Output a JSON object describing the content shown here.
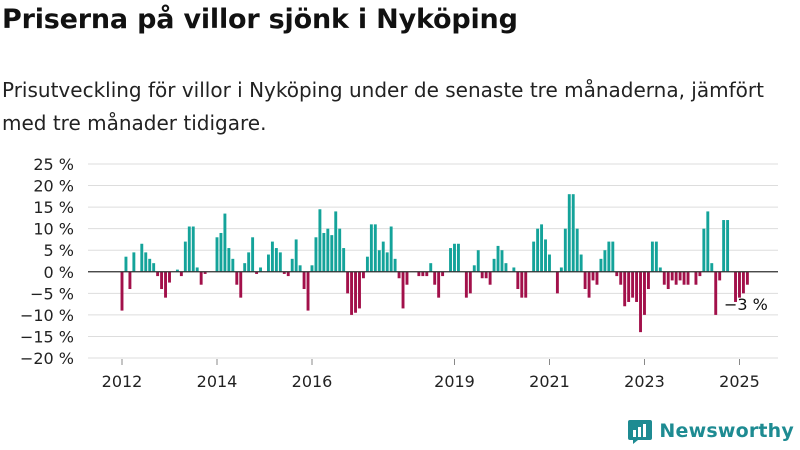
{
  "title": "Priserna på villor sjönk i Nyköping",
  "subtitle": "Prisutveckling för villor i Nyköping under de senaste tre månaderna, jämfört med tre månader tidigare.",
  "brand": "Newsworthy",
  "colors": {
    "positive": "#14a39a",
    "negative": "#a2104a",
    "grid": "#dddddd",
    "text": "#222222"
  },
  "annotation": {
    "text": "−3 %"
  },
  "chart_data": {
    "type": "bar",
    "title": "Priserna på villor sjönk i Nyköping",
    "xlabel": "",
    "ylabel": "",
    "ylim": [
      -20,
      25
    ],
    "grid": true,
    "x_tick_labels": [
      "2012",
      "2014",
      "2016",
      "2019",
      "2021",
      "2023",
      "2025"
    ],
    "x_tick_values": [
      2012,
      2014,
      2016,
      2019,
      2021,
      2023,
      2025
    ],
    "y_tick_labels": [
      "25 %",
      "20 %",
      "15 %",
      "10 %",
      "5 %",
      "0 %",
      "−5 %",
      "−10 %",
      "−15 %",
      "−20 %"
    ],
    "y_tick_values": [
      25,
      20,
      15,
      10,
      5,
      0,
      -5,
      -10,
      -15,
      -20
    ],
    "x_start": 2012.0,
    "x_step": 0.08333,
    "values": [
      -9,
      3.5,
      -4,
      4.5,
      0,
      6.5,
      4.5,
      3,
      2,
      -1,
      -4,
      -6,
      -2.5,
      0,
      0.5,
      -1,
      7,
      10.5,
      10.5,
      1,
      -3,
      -0.5,
      0,
      0,
      8,
      9,
      13.5,
      5.5,
      3,
      -3,
      -6,
      2,
      4.5,
      8,
      -0.5,
      1,
      0,
      4,
      7,
      5.5,
      4.5,
      -0.5,
      -1,
      3,
      7.5,
      1.5,
      -4,
      -9,
      1.5,
      8,
      14.5,
      9,
      10,
      8.5,
      14,
      10,
      5.5,
      -5,
      -10,
      -9.5,
      -8.5,
      -1.5,
      3.5,
      11,
      11,
      5,
      7,
      4.5,
      10.5,
      3,
      -1.5,
      -8.5,
      -3,
      0,
      0,
      -1,
      -1,
      -1,
      2,
      -3,
      -6,
      -1,
      0,
      5.5,
      6.5,
      6.5,
      0,
      -6,
      -5,
      1.5,
      5,
      -1.5,
      -1.5,
      -3,
      3,
      6,
      5,
      2,
      0,
      1,
      -4,
      -6,
      -6,
      0,
      7,
      10,
      11,
      7.5,
      4,
      0,
      -5,
      1,
      10,
      18,
      18,
      10,
      4,
      -4,
      -6,
      -2,
      -3,
      3,
      5,
      7,
      7,
      -1,
      -3,
      -8,
      -7,
      -6,
      -7,
      -14,
      -10,
      -4,
      7,
      7,
      1,
      -3,
      -4,
      -2,
      -3,
      -2,
      -3,
      -3,
      0,
      -3,
      -1,
      10,
      14,
      2,
      -10,
      -2,
      12,
      12,
      0,
      -7,
      -6,
      -5,
      -3
    ]
  }
}
